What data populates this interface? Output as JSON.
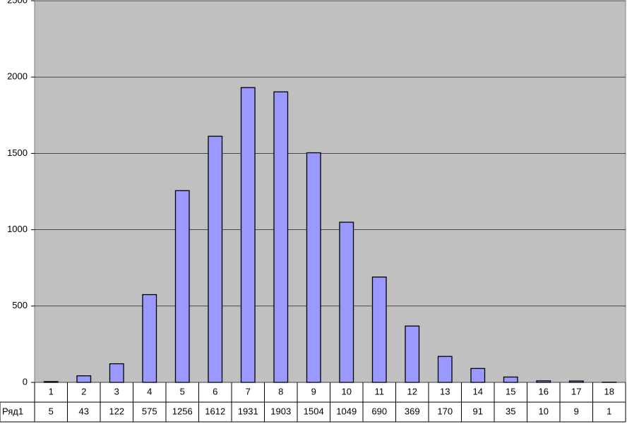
{
  "chart_data": {
    "type": "bar",
    "categories": [
      "1",
      "2",
      "3",
      "4",
      "5",
      "6",
      "7",
      "8",
      "9",
      "10",
      "11",
      "12",
      "13",
      "14",
      "15",
      "16",
      "17",
      "18"
    ],
    "series": [
      {
        "name": "Ряд1",
        "color": "#9999ff",
        "values": [
          5,
          43,
          122,
          575,
          1256,
          1612,
          1931,
          1903,
          1504,
          1049,
          690,
          369,
          170,
          91,
          35,
          10,
          9,
          1
        ]
      }
    ],
    "ylim": [
      0,
      2500
    ],
    "yticks": [
      0,
      500,
      1000,
      1500,
      2000,
      2500
    ],
    "grid": true
  }
}
